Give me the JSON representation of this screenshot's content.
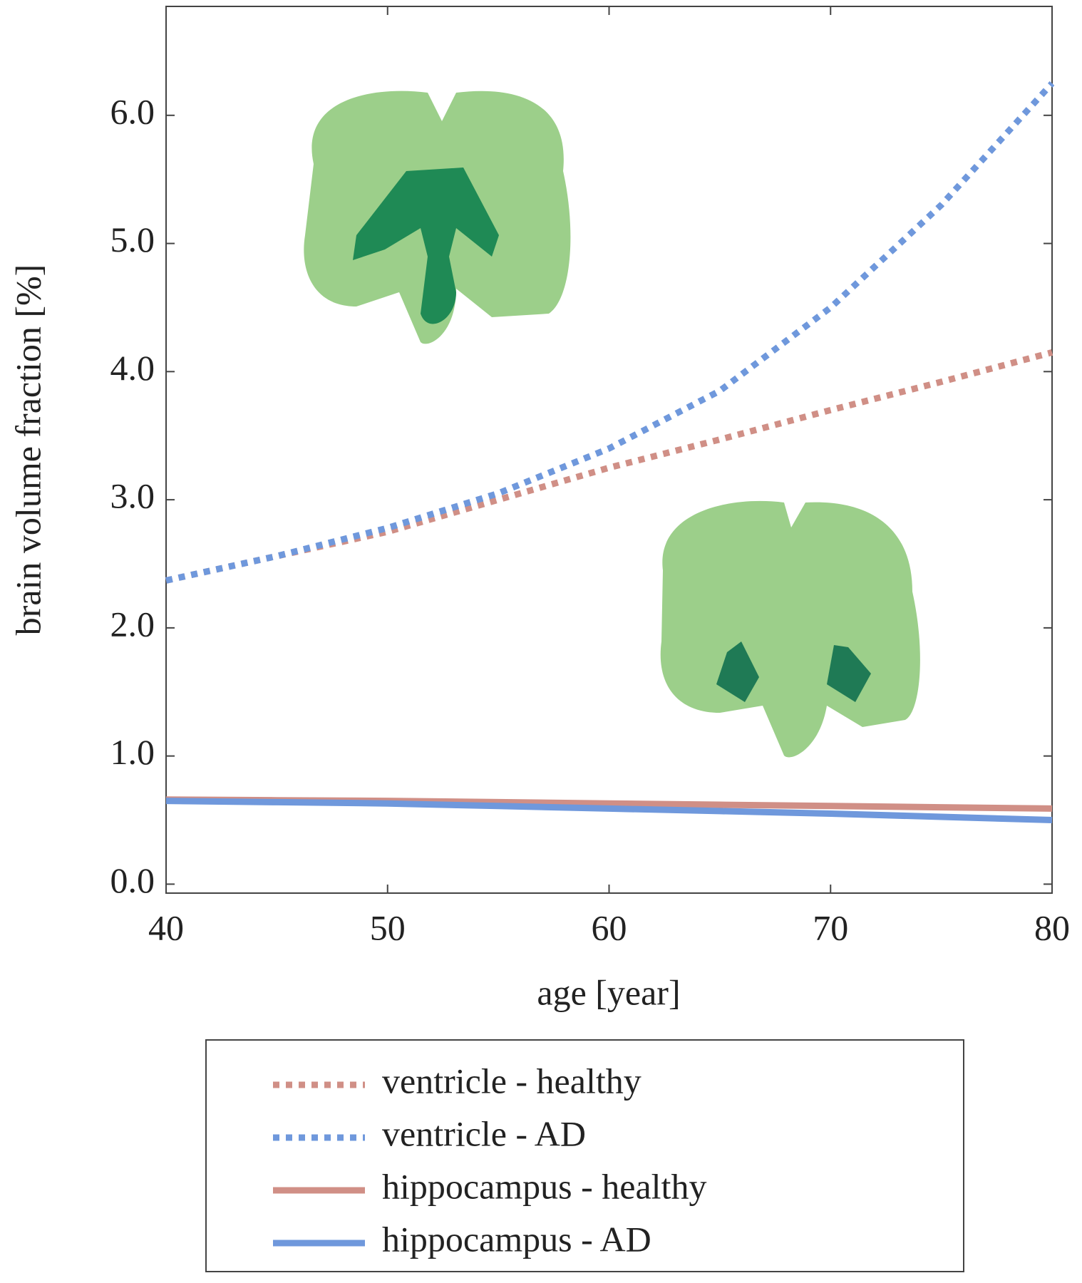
{
  "chart_data": {
    "type": "line",
    "xlabel": "age [year]",
    "ylabel": "brain volume fraction [%]",
    "x": [
      40,
      45,
      50,
      55,
      60,
      65,
      70,
      75,
      80
    ],
    "series": [
      {
        "name": "ventricle - healthy",
        "color": "#d08f86",
        "style": "dotted",
        "values": [
          2.37,
          2.56,
          2.75,
          3.0,
          3.25,
          3.47,
          3.7,
          3.92,
          4.15
        ]
      },
      {
        "name": "ventricle - AD",
        "color": "#6f98dc",
        "style": "dotted",
        "values": [
          2.37,
          2.56,
          2.78,
          3.05,
          3.4,
          3.85,
          4.5,
          5.3,
          6.25
        ]
      },
      {
        "name": "hippocampus - healthy",
        "color": "#d08f86",
        "style": "solid",
        "values": [
          0.66,
          0.655,
          0.65,
          0.64,
          0.63,
          0.62,
          0.61,
          0.6,
          0.59
        ]
      },
      {
        "name": "hippocampus - AD",
        "color": "#6f98dc",
        "style": "solid",
        "values": [
          0.65,
          0.64,
          0.63,
          0.61,
          0.59,
          0.57,
          0.55,
          0.525,
          0.5
        ]
      }
    ],
    "xlim": [
      40,
      80
    ],
    "xticks": [
      40,
      50,
      60,
      70,
      80
    ],
    "ylim": [
      -0.07,
      6.85
    ],
    "yticks": [
      {
        "value": 0,
        "label": "0.0"
      },
      {
        "value": 1,
        "label": "1.0"
      },
      {
        "value": 2,
        "label": "2.0"
      },
      {
        "value": 3,
        "label": "3.0"
      },
      {
        "value": 4,
        "label": "4.0"
      },
      {
        "value": 5,
        "label": "5.0"
      },
      {
        "value": 6,
        "label": "6.0"
      }
    ],
    "grid": false
  }
}
